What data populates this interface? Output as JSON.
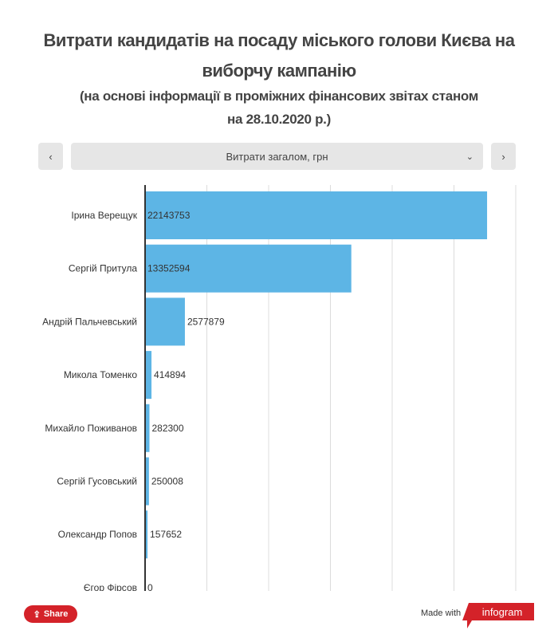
{
  "title": "Витрати кандидатів на посаду міського голови Києва на виборчу кампанію",
  "subtitle": "(на основі інформації в проміжних фінансових звітах станом на 28.10.2020 р.)",
  "selector": {
    "value": "Витрати загалом, грн",
    "prev_icon": "chevron-left",
    "next_icon": "chevron-right",
    "dropdown_icon": "chevron-down"
  },
  "footer": {
    "share_label": "Share",
    "made_with": "Made with",
    "brand": "infogram"
  },
  "colors": {
    "bar": "#5db5e5",
    "accent": "#d42229"
  },
  "chart_data": {
    "type": "bar",
    "orientation": "horizontal",
    "title": "Витрати кандидатів на посаду міського голови Києва на виборчу кампанію",
    "categories": [
      "Ірина Верещук",
      "Сергій Притула",
      "Андрій Пальчевський",
      "Микола Томенко",
      "Михайло Поживанов",
      "Сергій Гусовський",
      "Олександр Попов",
      "Єгор Фірсов"
    ],
    "values": [
      22143753,
      13352594,
      2577879,
      414894,
      282300,
      250008,
      157652,
      0
    ],
    "xlim": [
      0,
      24000000
    ],
    "grid": true,
    "data_labels": true
  }
}
